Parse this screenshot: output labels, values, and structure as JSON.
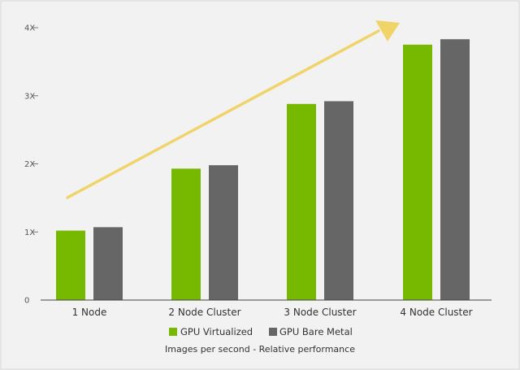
{
  "chart_data": {
    "type": "bar",
    "categories": [
      "1 Node",
      "2 Node Cluster",
      "3 Node Cluster",
      "4 Node Cluster"
    ],
    "series": [
      {
        "name": "GPU Virtualized",
        "color": "#76b900",
        "values": [
          1.02,
          1.93,
          2.88,
          3.75
        ]
      },
      {
        "name": "GPU Bare Metal",
        "color": "#666666",
        "values": [
          1.07,
          1.98,
          2.92,
          3.83
        ]
      }
    ],
    "y_ticks": [
      {
        "value": 0,
        "label": "0"
      },
      {
        "value": 1,
        "label": "1X"
      },
      {
        "value": 2,
        "label": "2X"
      },
      {
        "value": 3,
        "label": "3X"
      },
      {
        "value": 4,
        "label": "4X"
      }
    ],
    "ylim": [
      0,
      4
    ],
    "grid": false,
    "legend_position": "bottom",
    "caption": "Images per second - Relative performance",
    "annotation": {
      "type": "trend-arrow",
      "color": "#f0d46a"
    }
  }
}
